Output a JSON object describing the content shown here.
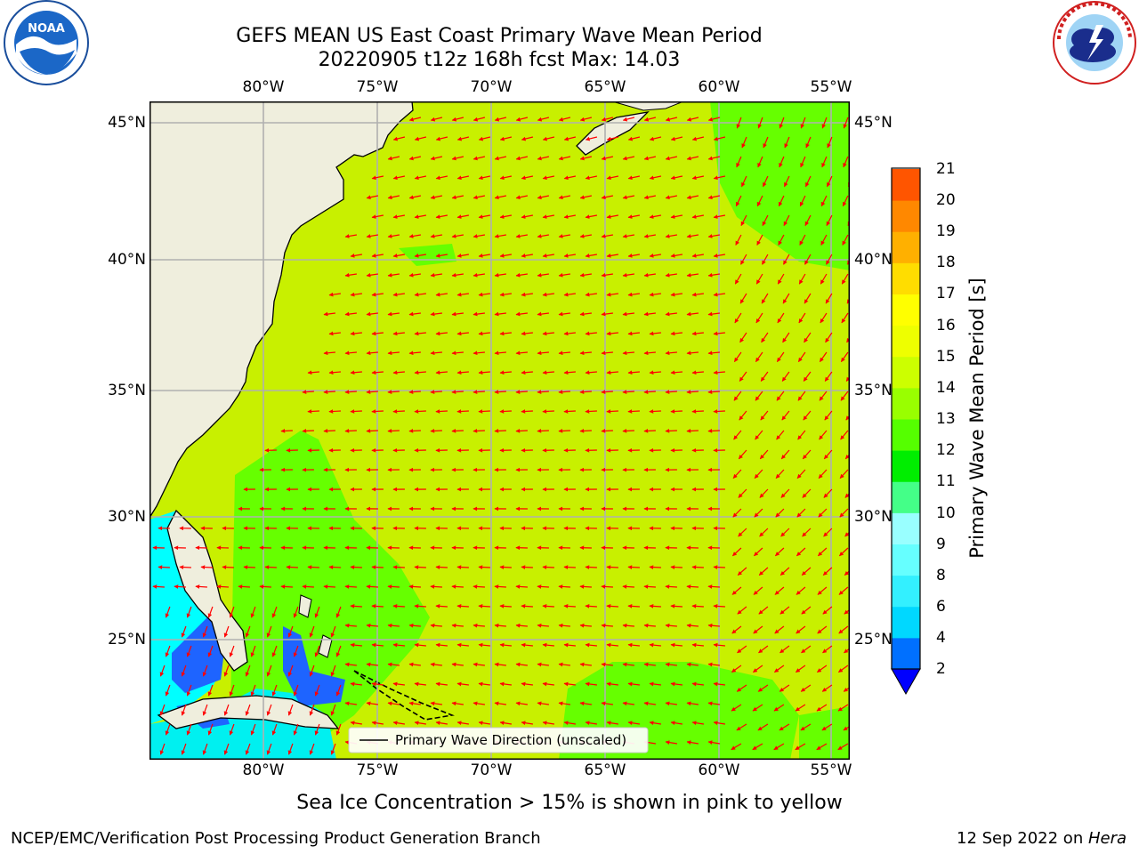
{
  "header": {
    "title_line1": "GEFS MEAN US East Coast Primary Wave Mean Period",
    "title_line2": "20220905 t12z 168h fcst   Max: 14.03"
  },
  "logos": {
    "left": {
      "text": "NOAA",
      "ring_text": "NATIONAL OCEANIC AND ATMOSPHERIC ADMINISTRATION · U.S. DEPARTMENT OF COMMERCE"
    },
    "right": {
      "ring_text": "NATIONAL WEATHER SERVICE"
    }
  },
  "map": {
    "lon_labels": [
      "80°W",
      "75°W",
      "70°W",
      "65°W",
      "60°W",
      "55°W"
    ],
    "lat_labels": [
      "45°N",
      "40°N",
      "35°N",
      "30°N",
      "25°N"
    ],
    "legend_label": "Primary Wave Direction (unscaled)",
    "colors": {
      "land": "#efeedd",
      "grid": "#b0b0b0",
      "arrow": "#ff0000",
      "ocean_main": "#c8f000",
      "ocean_green": "#66ff00"
    }
  },
  "colorbar": {
    "label": "Primary Wave Mean Period [s]",
    "ticks": [
      "2",
      "4",
      "6",
      "8",
      "9",
      "10",
      "11",
      "12",
      "13",
      "14",
      "15",
      "16",
      "17",
      "18",
      "19",
      "20",
      "21"
    ],
    "colors": [
      "#0070ff",
      "#00d8ff",
      "#33f0ff",
      "#66ffff",
      "#99ffff",
      "#44ff88",
      "#00ee00",
      "#55ff00",
      "#99ff00",
      "#ccff00",
      "#eeff00",
      "#ffff00",
      "#ffdd00",
      "#ffb000",
      "#ff8800",
      "#ff5500",
      "#ff2200",
      "#ff0000"
    ]
  },
  "caption": "Sea Ice Concentration > 15% is shown in pink to yellow",
  "footer": {
    "left": "NCEP/EMC/Verification Post Processing Product Generation Branch",
    "right_date": "12 Sep 2022 on ",
    "right_machine": "Hera"
  }
}
